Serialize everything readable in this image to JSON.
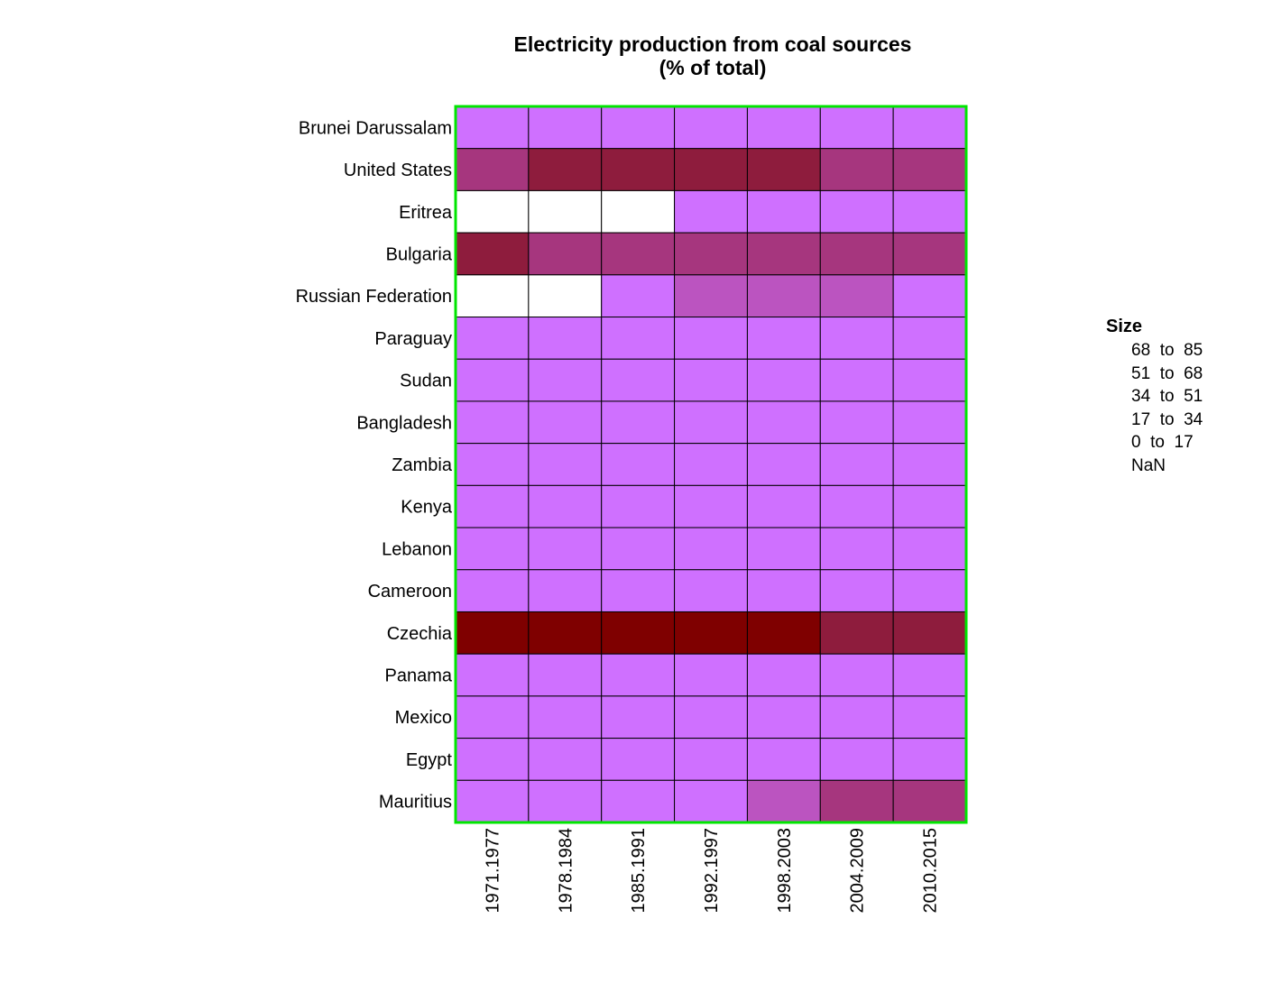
{
  "chart_data": {
    "type": "heatmap",
    "title": "Electricity production from coal sources",
    "subtitle": "(% of total)",
    "x": [
      "1971.1977",
      "1978.1984",
      "1985.1991",
      "1992.1997",
      "1998.2003",
      "2004.2009",
      "2010.2015"
    ],
    "y": [
      "Brunei Darussalam",
      "United States",
      "Eritrea",
      "Bulgaria",
      "Russian Federation",
      "Paraguay",
      "Sudan",
      "Bangladesh",
      "Zambia",
      "Kenya",
      "Lebanon",
      "Cameroon",
      "Czechia",
      "Panama",
      "Mexico",
      "Egypt",
      "Mauritius"
    ],
    "bins": [
      {
        "label": "68  to  85",
        "color": "#7f0000"
      },
      {
        "label": "51  to  68",
        "color": "#8e1c3d"
      },
      {
        "label": "34  to  51",
        "color": "#a6367e"
      },
      {
        "label": "17  to  34",
        "color": "#bb54c0"
      },
      {
        "label": "0  to  17",
        "color": "#cf70ff"
      },
      {
        "label": "NaN",
        "color": "#ffffff"
      }
    ],
    "cells": [
      [
        4,
        4,
        4,
        4,
        4,
        4,
        4
      ],
      [
        2,
        1,
        1,
        1,
        1,
        2,
        2
      ],
      [
        5,
        5,
        5,
        4,
        4,
        4,
        4
      ],
      [
        1,
        2,
        2,
        2,
        2,
        2,
        2
      ],
      [
        5,
        5,
        4,
        3,
        3,
        3,
        4
      ],
      [
        4,
        4,
        4,
        4,
        4,
        4,
        4
      ],
      [
        4,
        4,
        4,
        4,
        4,
        4,
        4
      ],
      [
        4,
        4,
        4,
        4,
        4,
        4,
        4
      ],
      [
        4,
        4,
        4,
        4,
        4,
        4,
        4
      ],
      [
        4,
        4,
        4,
        4,
        4,
        4,
        4
      ],
      [
        4,
        4,
        4,
        4,
        4,
        4,
        4
      ],
      [
        4,
        4,
        4,
        4,
        4,
        4,
        4
      ],
      [
        0,
        0,
        0,
        0,
        0,
        1,
        1
      ],
      [
        4,
        4,
        4,
        4,
        4,
        4,
        4
      ],
      [
        4,
        4,
        4,
        4,
        4,
        4,
        4
      ],
      [
        4,
        4,
        4,
        4,
        4,
        4,
        4
      ],
      [
        4,
        4,
        4,
        4,
        3,
        2,
        2
      ]
    ],
    "legend_title": "Size",
    "legend_position": "right",
    "border_color": "#00e600",
    "grid": true
  }
}
